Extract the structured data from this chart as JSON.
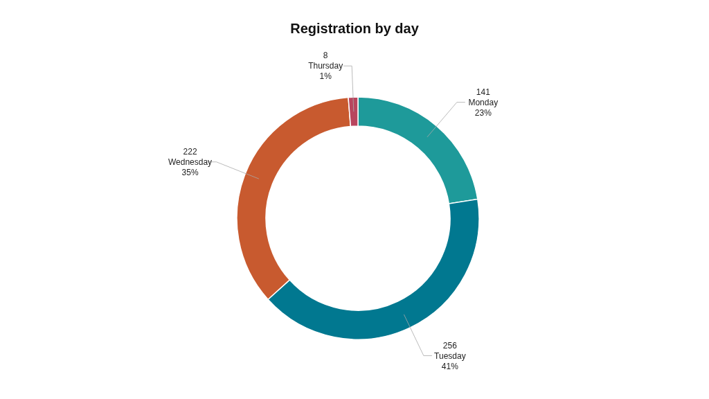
{
  "chart_data": {
    "type": "donut",
    "title": "Registration by day",
    "categories": [
      "Monday",
      "Tuesday",
      "Wednesday",
      "Thursday"
    ],
    "values": [
      141,
      256,
      222,
      8
    ],
    "colors": [
      "#1e9a9a",
      "#017890",
      "#c85a2f",
      "#b8455e"
    ],
    "data_labels": true,
    "annotations": [
      {
        "text": "23%",
        "x": "Monday"
      },
      {
        "text": "41%",
        "x": "Tuesday"
      },
      {
        "text": "35%",
        "x": "Wednesday"
      },
      {
        "text": "1%",
        "x": "Thursday"
      }
    ]
  }
}
